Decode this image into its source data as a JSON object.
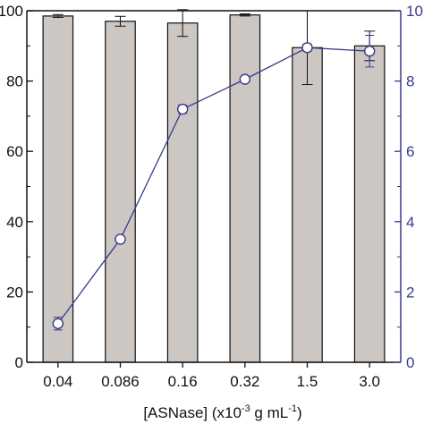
{
  "chart_data": {
    "type": "bar",
    "title": "",
    "categories": [
      "0.04",
      "0.086",
      "0.16",
      "0.32",
      "1.5",
      "3.0"
    ],
    "xlabel": {
      "prefix": "[ASNase] (x10",
      "exp1": "-3",
      "mid": " g mL",
      "exp2": "-1",
      "suffix": ")"
    },
    "left_axis": {
      "ylim": [
        0,
        100
      ],
      "ticks": [
        0,
        20,
        40,
        60,
        80,
        100
      ],
      "tick_labels": [
        "0",
        "20",
        "40",
        "60",
        "80",
        "100"
      ]
    },
    "right_axis": {
      "ylim": [
        0,
        10
      ],
      "ticks": [
        0,
        2,
        4,
        6,
        8,
        10
      ],
      "tick_labels": [
        "0",
        "2",
        "4",
        "6",
        "8",
        "10"
      ],
      "color": "#3a3a8c"
    },
    "series": [
      {
        "type": "bar",
        "axis": "left",
        "values": [
          98.5,
          97.0,
          96.5,
          98.8,
          89.5,
          90.0
        ],
        "errors": [
          0.4,
          1.4,
          3.8,
          0.3,
          10.5,
          4.2
        ],
        "color": "#ccc7c2"
      },
      {
        "type": "line",
        "axis": "right",
        "values": [
          1.1,
          3.5,
          7.2,
          8.05,
          8.95,
          8.85
        ],
        "errors": [
          0.18,
          0.08,
          0.12,
          0.08,
          0.1,
          0.45
        ],
        "color": "#3a3a8c"
      }
    ]
  }
}
